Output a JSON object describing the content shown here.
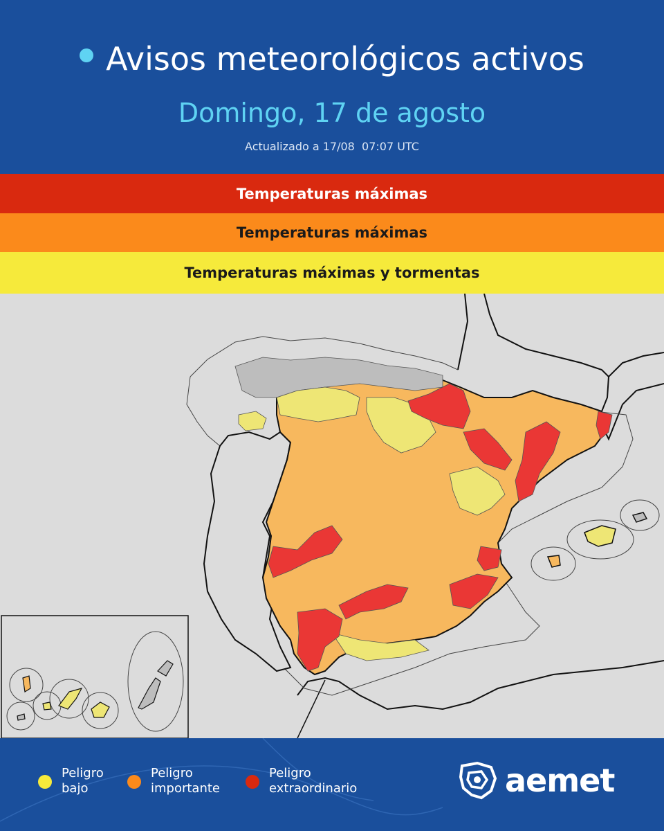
{
  "header": {
    "title": "Avisos meteorológicos activos",
    "date": "Domingo, 17 de agosto",
    "updated": "Actualizado a 17/08  07:07 UTC"
  },
  "warnings": [
    {
      "level": "red",
      "label": "Temperaturas máximas",
      "color": "#d9290f"
    },
    {
      "level": "orange",
      "label": "Temperaturas máximas",
      "color": "#fb8a1b"
    },
    {
      "level": "yellow",
      "label": "Temperaturas máximas y tormentas",
      "color": "#f6ea3b"
    }
  ],
  "legend": [
    {
      "line1": "Peligro",
      "line2": "bajo",
      "color": "#f6ea3b"
    },
    {
      "line1": "Peligro",
      "line2": "importante",
      "color": "#fb8a1b"
    },
    {
      "line1": "Peligro",
      "line2": "extraordinario",
      "color": "#d9290f"
    }
  ],
  "logo": {
    "text": "aemet"
  },
  "map_colors": {
    "sea": "#dcdcdc",
    "no_warning": "#bdbdbd",
    "yellow": "#eee675",
    "orange": "#f7b85e",
    "red": "#ea3735"
  }
}
